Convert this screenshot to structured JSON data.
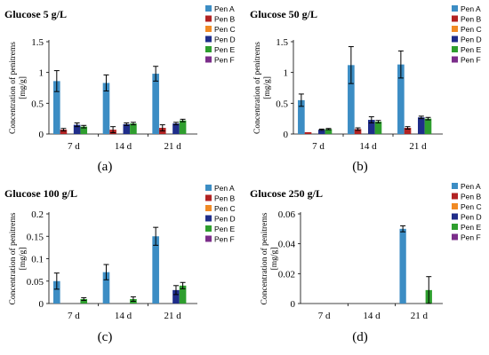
{
  "chart_data": [
    {
      "type": "bar",
      "title": "Glucose 5 g/L",
      "panel_label": "(a)",
      "ylabel_line1": "Concentration of penitrems",
      "ylabel_line2": "[mg/g]",
      "categories": [
        "7 d",
        "14 d",
        "21 d"
      ],
      "ylim": [
        0,
        1.5
      ],
      "yticks": [
        "0",
        "0.5",
        "1",
        "1.5"
      ],
      "ytick_values": [
        0,
        0.5,
        1,
        1.5
      ],
      "series": [
        {
          "name": "Pen A",
          "color": "#3c8dc4",
          "values": [
            0.86,
            0.83,
            0.98
          ],
          "errors": [
            0.17,
            0.13,
            0.12
          ]
        },
        {
          "name": "Pen B",
          "color": "#b22222",
          "values": [
            0.07,
            0.07,
            0.1
          ],
          "errors": [
            0.02,
            0.05,
            0.05
          ]
        },
        {
          "name": "Pen C",
          "color": "#f08a24",
          "values": [
            0,
            0,
            0
          ],
          "errors": [
            0,
            0,
            0
          ]
        },
        {
          "name": "Pen D",
          "color": "#1f2d8a",
          "values": [
            0.15,
            0.16,
            0.17
          ],
          "errors": [
            0.03,
            0.02,
            0.02
          ]
        },
        {
          "name": "Pen E",
          "color": "#2e9e2e",
          "values": [
            0.12,
            0.17,
            0.22
          ],
          "errors": [
            0.02,
            0.02,
            0.02
          ]
        },
        {
          "name": "Pen F",
          "color": "#7b2d8a",
          "values": [
            0,
            0,
            0
          ],
          "errors": [
            0,
            0,
            0
          ]
        }
      ]
    },
    {
      "type": "bar",
      "title": "Glucose 50 g/L",
      "panel_label": "(b)",
      "ylabel_line1": "Concentration of penitrems",
      "ylabel_line2": "[mg/g]",
      "categories": [
        "7 d",
        "14 d",
        "21 d"
      ],
      "ylim": [
        0,
        1.5
      ],
      "yticks": [
        "0",
        "0.5",
        "1",
        "1.5"
      ],
      "ytick_values": [
        0,
        0.5,
        1,
        1.5
      ],
      "series": [
        {
          "name": "Pen A",
          "color": "#3c8dc4",
          "values": [
            0.55,
            1.12,
            1.13
          ],
          "errors": [
            0.1,
            0.3,
            0.22
          ]
        },
        {
          "name": "Pen B",
          "color": "#b22222",
          "values": [
            0.03,
            0.08,
            0.1
          ],
          "errors": [
            0,
            0.02,
            0.02
          ]
        },
        {
          "name": "Pen C",
          "color": "#f08a24",
          "values": [
            0,
            0,
            0
          ],
          "errors": [
            0,
            0,
            0
          ]
        },
        {
          "name": "Pen D",
          "color": "#1f2d8a",
          "values": [
            0.07,
            0.23,
            0.27
          ],
          "errors": [
            0.01,
            0.05,
            0.02
          ]
        },
        {
          "name": "Pen E",
          "color": "#2e9e2e",
          "values": [
            0.08,
            0.2,
            0.25
          ],
          "errors": [
            0.01,
            0.02,
            0.02
          ]
        },
        {
          "name": "Pen F",
          "color": "#7b2d8a",
          "values": [
            0,
            0,
            0
          ],
          "errors": [
            0,
            0,
            0
          ]
        }
      ]
    },
    {
      "type": "bar",
      "title": "Glucose 100 g/L",
      "panel_label": "(c)",
      "ylabel_line1": "Concentration of penitrems",
      "ylabel_line2": "[mg/g]",
      "categories": [
        "7 d",
        "14 d",
        "21 d"
      ],
      "ylim": [
        0,
        0.2
      ],
      "yticks": [
        "0",
        "0.05",
        "0.1",
        "0.15",
        "0.2"
      ],
      "ytick_values": [
        0,
        0.05,
        0.1,
        0.15,
        0.2
      ],
      "series": [
        {
          "name": "Pen A",
          "color": "#3c8dc4",
          "values": [
            0.05,
            0.07,
            0.15
          ],
          "errors": [
            0.018,
            0.017,
            0.02
          ]
        },
        {
          "name": "Pen B",
          "color": "#b22222",
          "values": [
            0,
            0,
            0
          ],
          "errors": [
            0,
            0,
            0
          ]
        },
        {
          "name": "Pen C",
          "color": "#f08a24",
          "values": [
            0,
            0,
            0
          ],
          "errors": [
            0,
            0,
            0
          ]
        },
        {
          "name": "Pen D",
          "color": "#1f2d8a",
          "values": [
            0,
            0,
            0.03
          ],
          "errors": [
            0,
            0,
            0.01
          ]
        },
        {
          "name": "Pen E",
          "color": "#2e9e2e",
          "values": [
            0.01,
            0.01,
            0.04
          ],
          "errors": [
            0.003,
            0.005,
            0.007
          ]
        },
        {
          "name": "Pen F",
          "color": "#7b2d8a",
          "values": [
            0,
            0,
            0
          ],
          "errors": [
            0,
            0,
            0
          ]
        }
      ]
    },
    {
      "type": "bar",
      "title": "Glucose 250 g/L",
      "panel_label": "(d)",
      "ylabel_line1": "Concentration of penitrems",
      "ylabel_line2": "[mg/g]",
      "categories": [
        "7 d",
        "14 d",
        "21 d"
      ],
      "ylim": [
        0,
        0.06
      ],
      "yticks": [
        "0",
        "0.02",
        "0.04",
        "0.06"
      ],
      "ytick_values": [
        0,
        0.02,
        0.04,
        0.06
      ],
      "series": [
        {
          "name": "Pen A",
          "color": "#3c8dc4",
          "values": [
            0,
            0,
            0.05
          ],
          "errors": [
            0,
            0,
            0.002
          ]
        },
        {
          "name": "Pen B",
          "color": "#b22222",
          "values": [
            0,
            0,
            0
          ],
          "errors": [
            0,
            0,
            0
          ]
        },
        {
          "name": "Pen C",
          "color": "#f08a24",
          "values": [
            0,
            0,
            0
          ],
          "errors": [
            0,
            0,
            0
          ]
        },
        {
          "name": "Pen D",
          "color": "#1f2d8a",
          "values": [
            0,
            0,
            0
          ],
          "errors": [
            0,
            0,
            0
          ]
        },
        {
          "name": "Pen E",
          "color": "#2e9e2e",
          "values": [
            0,
            0,
            0.009
          ],
          "errors": [
            0,
            0,
            0.009
          ]
        },
        {
          "name": "Pen F",
          "color": "#7b2d8a",
          "values": [
            0,
            0,
            0
          ],
          "errors": [
            0,
            0,
            0
          ]
        }
      ]
    }
  ]
}
